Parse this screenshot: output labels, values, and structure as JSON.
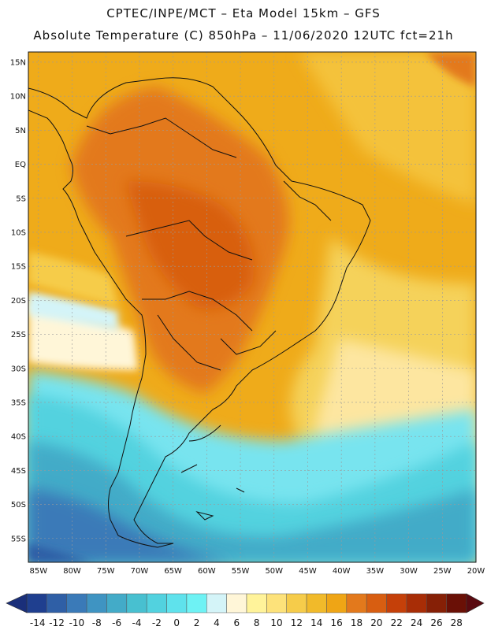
{
  "header": {
    "line1": "CPTEC/INPE/MCT –   Eta Model 15km – GFS",
    "line2": "Absolute Temperature (C) 850hPa – 11/06/2020 12UTC fct=21h"
  },
  "map": {
    "lat_labels": [
      "15N",
      "10N",
      "5N",
      "EQ",
      "5S",
      "10S",
      "15S",
      "20S",
      "25S",
      "30S",
      "35S",
      "40S",
      "45S",
      "50S",
      "55S"
    ],
    "lat_values": [
      15,
      10,
      5,
      0,
      -5,
      -10,
      -15,
      -20,
      -25,
      -30,
      -35,
      -40,
      -45,
      -50,
      -55
    ],
    "lon_labels": [
      "85W",
      "80W",
      "75W",
      "70W",
      "65W",
      "60W",
      "55W",
      "50W",
      "45W",
      "40W",
      "35W",
      "30W",
      "25W",
      "20W"
    ],
    "lon_values": [
      -85,
      -80,
      -75,
      -70,
      -65,
      -60,
      -55,
      -50,
      -45,
      -40,
      -35,
      -30,
      -25,
      -20
    ]
  },
  "colorbar": {
    "labels": [
      "-14",
      "-12",
      "-10",
      "-8",
      "-6",
      "-4",
      "-2",
      "0",
      "2",
      "4",
      "6",
      "8",
      "10",
      "12",
      "14",
      "16",
      "18",
      "20",
      "22",
      "24",
      "26",
      "28"
    ],
    "colors": [
      "#1f3f8f",
      "#2f5fa6",
      "#3a7ab8",
      "#3f94c2",
      "#43abc8",
      "#48c0d0",
      "#52d2df",
      "#5fe2ec",
      "#6ef2f4",
      "#d4f4f8",
      "#fff6d8",
      "#fff39a",
      "#fde27a",
      "#f6cc4a",
      "#f1ba2a",
      "#efa515",
      "#e3791c",
      "#d85e11",
      "#c54009",
      "#a82d06",
      "#862006",
      "#6a1006"
    ]
  }
}
